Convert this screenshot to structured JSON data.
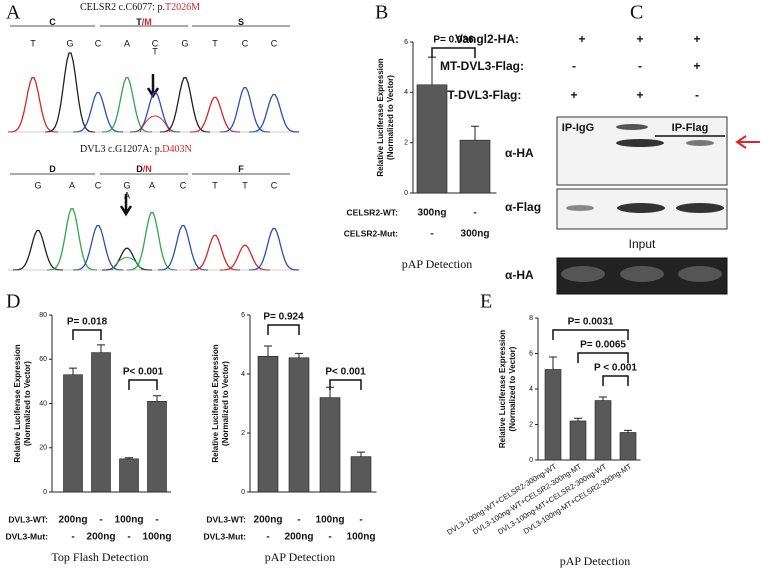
{
  "panel_labels": [
    "A",
    "B",
    "C",
    "D",
    "E"
  ],
  "panel_a": {
    "top": {
      "title": "CELSR2 c.C6077: p.",
      "mutation": "T2026M",
      "mutation_color": "#d9262b",
      "codons": [
        {
          "text": "C"
        },
        {
          "text": "T",
          "alt": "/M"
        },
        {
          "text": "S"
        }
      ],
      "bases": [
        {
          "text": "T",
          "color": "#d9262b"
        },
        {
          "text": "G",
          "color": "#222222"
        },
        {
          "text": "C",
          "color": "#2b4fb5"
        },
        {
          "text": "A",
          "color": "#2fa84f"
        },
        {
          "text": "C",
          "color": "#2b4fb5"
        },
        {
          "text": "G",
          "color": "#222222"
        },
        {
          "text": "T",
          "color": "#d9262b"
        },
        {
          "text": "C",
          "color": "#2b4fb5"
        },
        {
          "text": "C",
          "color": "#2b4fb5"
        }
      ],
      "second_base": {
        "text": "T",
        "color": "#d9262b"
      }
    },
    "bottom": {
      "title": "DVL3 c.G1207A: p.",
      "mutation": "D403N",
      "mutation_color": "#d9262b",
      "codons": [
        {
          "text": "D"
        },
        {
          "text": "D",
          "alt": "/N"
        },
        {
          "text": "F"
        }
      ],
      "bases": [
        {
          "text": "G",
          "color": "#222222"
        },
        {
          "text": "A",
          "color": "#2fa84f"
        },
        {
          "text": "C",
          "color": "#2b4fb5"
        },
        {
          "text": "G",
          "color": "#222222"
        },
        {
          "text": "A",
          "color": "#2fa84f"
        },
        {
          "text": "C",
          "color": "#2b4fb5"
        },
        {
          "text": "T",
          "color": "#d9262b"
        },
        {
          "text": "T",
          "color": "#d9262b"
        },
        {
          "text": "C",
          "color": "#2b4fb5"
        }
      ],
      "second_base": {
        "text": "A",
        "color": "#2fa84f"
      }
    }
  },
  "panel_c": {
    "rows": [
      {
        "name": "Vangl2-HA:",
        "values": [
          "+",
          "+",
          "+"
        ]
      },
      {
        "name": "MT-DVL3-Flag:",
        "values": [
          "-",
          "-",
          "+"
        ]
      },
      {
        "name": "WT-DVL3-Flag:",
        "values": [
          "+",
          "+",
          "-"
        ]
      }
    ],
    "ip_labels": [
      "IP-IgG",
      "IP-Flag"
    ],
    "blots": [
      "α-HA",
      "α-Flag"
    ],
    "input_title": "Input",
    "input_blot": "α-HA"
  },
  "chart_data": [
    {
      "type": "bar",
      "ylabel": [
        "Relative Luciferase Expression",
        "(Normalized to Vector)"
      ],
      "color": "#595959",
      "values": [
        4.3,
        2.1
      ],
      "errors": [
        1.1,
        0.55
      ],
      "ylim": [
        0,
        6
      ],
      "yticks": [
        0,
        2,
        4,
        6
      ],
      "annotations": [
        "P= 0.036"
      ],
      "conditions": [
        {
          "name": "CELSR2-WT:",
          "values": [
            "300ng",
            "-"
          ]
        },
        {
          "name": "CELSR2-Mut:",
          "values": [
            "-",
            "300ng"
          ]
        }
      ],
      "xlabel": "pAP Detection"
    },
    {
      "type": "bar",
      "ylabel": [
        "Relative Luciferase Expression",
        "(Normalized to Vector)"
      ],
      "color": "#595959",
      "values": [
        53,
        63,
        15,
        41
      ],
      "errors": [
        3,
        3.5,
        0.5,
        2.5
      ],
      "ylim": [
        0,
        80
      ],
      "yticks": [
        0,
        20,
        40,
        60,
        80
      ],
      "annotations": [
        "P= 0.018",
        "P< 0.001"
      ],
      "conditions": [
        {
          "name": "DVL3-WT:",
          "values": [
            "200ng",
            "-",
            "100ng",
            "-"
          ]
        },
        {
          "name": "DVL3-Mut:",
          "values": [
            "-",
            "200ng",
            "-",
            "100ng"
          ]
        }
      ],
      "xlabel": "Top Flash Detection"
    },
    {
      "type": "bar",
      "ylabel": [
        "Relative Luciferase Expression",
        "(Normalized to Vector)"
      ],
      "color": "#595959",
      "values": [
        4.6,
        4.55,
        3.2,
        1.2
      ],
      "errors": [
        0.35,
        0.15,
        0.35,
        0.15
      ],
      "ylim": [
        0,
        6
      ],
      "yticks": [
        0,
        2,
        4,
        6
      ],
      "annotations": [
        "P= 0.924",
        "P< 0.001"
      ],
      "conditions": [
        {
          "name": "DVL3-WT:",
          "values": [
            "200ng",
            "-",
            "100ng",
            "-"
          ]
        },
        {
          "name": "DVL3-Mut:",
          "values": [
            "-",
            "200ng",
            "-",
            "100ng"
          ]
        }
      ],
      "xlabel": "pAP Detection"
    },
    {
      "type": "bar",
      "ylabel": [
        "Relative Luciferase Expression",
        "(Normalized to Vector)"
      ],
      "color": "#595959",
      "categories": [
        "DVL3-100ng-WT+CELSR2-300ng-WT",
        "DVL3-100ng-WT+CELSR2-300ng-MT",
        "DVL3-100ng-MT+CELSR2-300ng-WT",
        "DVL3-100ng-MT+CELSR2-300ng-MT"
      ],
      "values": [
        5.1,
        2.2,
        3.35,
        1.55
      ],
      "errors": [
        0.7,
        0.15,
        0.2,
        0.12
      ],
      "ylim": [
        0,
        8
      ],
      "yticks": [
        0,
        2,
        4,
        6,
        8
      ],
      "annotations": [
        "P= 0.0031",
        "P= 0.0065",
        "P < 0.001"
      ],
      "xlabel": "pAP Detection"
    }
  ]
}
